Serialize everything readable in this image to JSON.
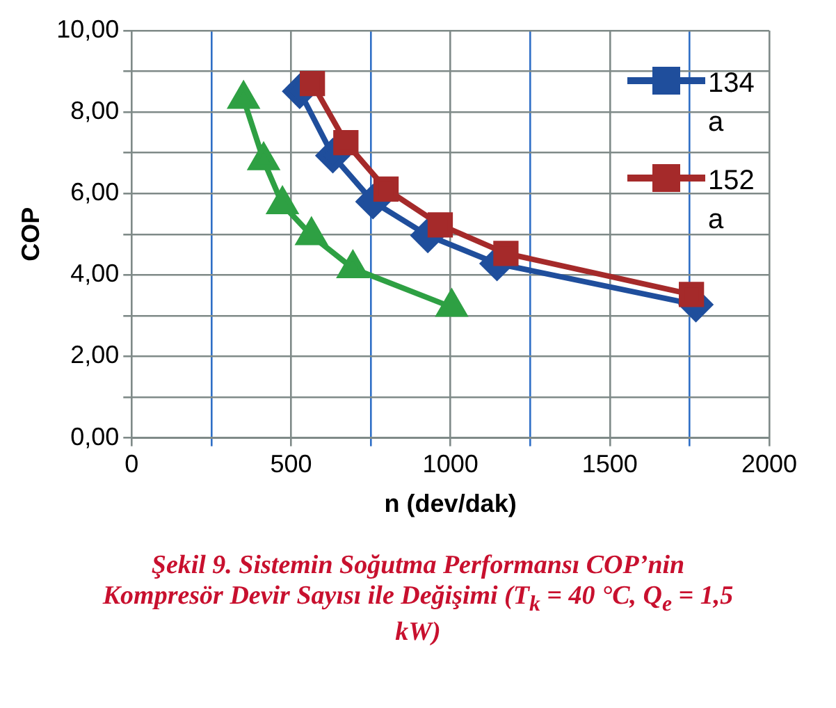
{
  "chart_data": {
    "type": "line",
    "xlabel": "n (dev/dak)",
    "ylabel": "COP",
    "xlim": [
      0,
      2000
    ],
    "ylim": [
      0,
      10
    ],
    "xticks": [
      0,
      {
        "value": 250,
        "label": null
      },
      500,
      {
        "value": 750,
        "label": null
      },
      1000,
      {
        "value": 1250,
        "label": null
      },
      1500,
      {
        "value": 1750,
        "label": null
      },
      2000
    ],
    "yticks": [
      {
        "value": 0,
        "label": "0,00"
      },
      {
        "value": 1,
        "label": null
      },
      {
        "value": 2,
        "label": "2,00"
      },
      {
        "value": 3,
        "label": null
      },
      {
        "value": 4,
        "label": "4,00"
      },
      {
        "value": 5,
        "label": null
      },
      {
        "value": 6,
        "label": "6,00"
      },
      {
        "value": 7,
        "label": null
      },
      {
        "value": 8,
        "label": "8,00"
      },
      {
        "value": 9,
        "label": null
      },
      {
        "value": 10,
        "label": "10,00"
      }
    ],
    "grid": true,
    "legend": "top right",
    "series": [
      {
        "name": "134a",
        "color": "#1f4e9c",
        "marker": "diamond",
        "x": [
          527,
          631,
          757,
          929,
          1146,
          1770
        ],
        "values": [
          8.51,
          6.93,
          5.8,
          4.97,
          4.28,
          3.27
        ]
      },
      {
        "name": "152a",
        "color": "#a52a2a",
        "marker": "square",
        "x": [
          567,
          672,
          798,
          968,
          1174,
          1756
        ],
        "values": [
          8.7,
          7.25,
          6.11,
          5.23,
          4.53,
          3.52
        ]
      },
      {
        "color": "#2ea043",
        "marker": "triangle",
        "x": [
          351,
          414,
          473,
          564,
          694,
          1004
        ],
        "values": [
          8.32,
          6.81,
          5.73,
          4.97,
          4.16,
          3.21
        ]
      }
    ],
    "annotations": [
      "Şekil 9. Sistemin Soğutma Performansı COP’nin Kompresör Devir Sayısı ile Değişimi (T$_{k}$ = 40 °C, Q$_{e}$ = 1,5 kW)"
    ]
  }
}
